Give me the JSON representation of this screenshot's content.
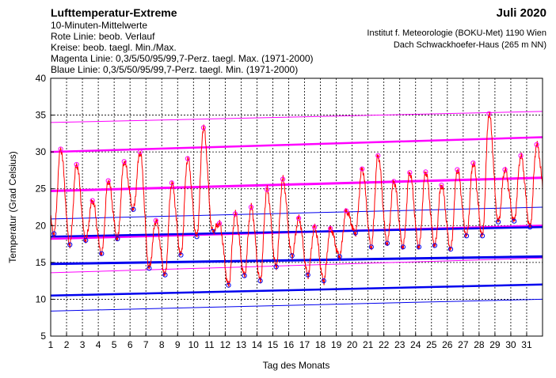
{
  "header": {
    "title": "Lufttemperatur-Extreme",
    "period": "Juli 2020",
    "description": [
      "10-Minuten-Mittelwerte",
      "Rote Linie: beob. Verlauf",
      "Kreise: beob. taegl. Min./Max.",
      "Magenta Linie: 0,3/5/50/95/99,7-Perz. taegl. Max. (1971-2000)",
      "Blaue Linie: 0,3/5/50/95/99,7-Perz. taegl. Min. (1971-2000)"
    ],
    "institute": [
      "Institut f. Meteorologie (BOKU-Met) 1190 Wien",
      "Dach Schwackhoefer-Haus (265 m NN)"
    ]
  },
  "chart_data": {
    "type": "line",
    "title": "Lufttemperatur-Extreme",
    "xlabel": "Tag des Monats",
    "ylabel": "Temperatur (Grad Celsius)",
    "xlim": [
      1,
      32
    ],
    "ylim": [
      5,
      40
    ],
    "x_ticks": [
      "1",
      "2",
      "3",
      "4",
      "5",
      "6",
      "7",
      "8",
      "9",
      "10",
      "11",
      "12",
      "13",
      "14",
      "15",
      "16",
      "17",
      "18",
      "19",
      "20",
      "21",
      "22",
      "23",
      "24",
      "25",
      "26",
      "27",
      "28",
      "29",
      "30",
      "31"
    ],
    "y_ticks": [
      "5",
      "10",
      "15",
      "20",
      "25",
      "30",
      "35",
      "40"
    ],
    "grid": true,
    "colors": {
      "observed": "#ff0000",
      "max_percentiles": "#ff00ff",
      "min_percentiles": "#0000ee",
      "minmax_circles": "#ff00ff",
      "min_circles": "#0000ee"
    },
    "daily_max": [
      30.4,
      28.3,
      23.4,
      26.1,
      28.7,
      30.0,
      20.7,
      25.8,
      29.1,
      33.3,
      20.3,
      21.6,
      22.5,
      24.9,
      26.3,
      21.0,
      19.8,
      19.6,
      22.0,
      27.7,
      29.5,
      26.0,
      27.2,
      27.3,
      25.5,
      27.6,
      28.5,
      35.2,
      27.6,
      29.5,
      31.0
    ],
    "daily_min": [
      18.9,
      17.4,
      18.0,
      16.2,
      18.2,
      22.2,
      14.2,
      13.3,
      16.0,
      18.5,
      19.2,
      11.9,
      13.2,
      12.5,
      14.4,
      15.9,
      13.3,
      12.5,
      15.8,
      19.0,
      17.1,
      17.6,
      17.1,
      17.1,
      17.3,
      16.8,
      18.6,
      18.6,
      20.5,
      20.6,
      19.8
    ],
    "series": [
      {
        "name": "Max 99,7-Perz.",
        "group": "max",
        "values": [
          34.0,
          35.5
        ]
      },
      {
        "name": "Max 95-Perz.",
        "group": "max",
        "values": [
          30.0,
          32.0
        ]
      },
      {
        "name": "Max 50-Perz.",
        "group": "max",
        "values": [
          24.7,
          26.5
        ]
      },
      {
        "name": "Max 5-Perz.",
        "group": "max",
        "values": [
          18.2,
          20.0
        ]
      },
      {
        "name": "Max 0,3-Perz.",
        "group": "max",
        "values": [
          13.6,
          15.6
        ]
      },
      {
        "name": "Min 99,7-Perz.",
        "group": "min",
        "values": [
          20.9,
          22.5
        ]
      },
      {
        "name": "Min 95-Perz.",
        "group": "min",
        "values": [
          18.5,
          19.8
        ]
      },
      {
        "name": "Min 50-Perz.",
        "group": "min",
        "values": [
          14.8,
          15.8
        ]
      },
      {
        "name": "Min 5-Perz.",
        "group": "min",
        "values": [
          10.5,
          12.0
        ]
      },
      {
        "name": "Min 0,3-Perz.",
        "group": "min",
        "values": [
          8.4,
          10.0
        ]
      }
    ]
  }
}
